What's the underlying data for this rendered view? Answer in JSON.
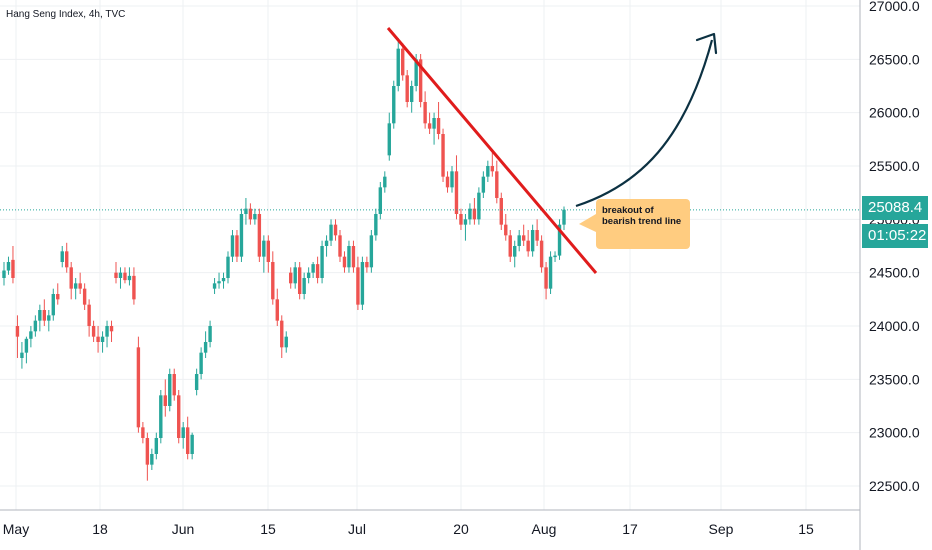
{
  "title": "Hang Seng Index, 4h, TVC",
  "colors": {
    "up": "#26a69a",
    "down": "#ef5350",
    "trend": "#e01c1c",
    "arrow": "#0c3142",
    "note_bg": "#ffcc80",
    "tag": "#26a69a"
  },
  "price_label": "25088.4",
  "countdown": "01:05:22",
  "annotation": "breakout of bearish trend line",
  "chart_data": {
    "type": "candlestick",
    "title": "Hang Seng Index, 4h, TVC",
    "y_ticks": [
      "22500.0",
      "23000.0",
      "23500.0",
      "24000.0",
      "24500.0",
      "25000.0",
      "25500.0",
      "26000.0",
      "26500.0",
      "27000.0"
    ],
    "x_ticks": [
      "May",
      "18",
      "Jun",
      "15",
      "Jul",
      "20",
      "Aug",
      "17",
      "Sep",
      "15"
    ],
    "ylim": [
      22250,
      27050
    ],
    "last_price": 25088.4,
    "candles": [
      [
        24450,
        24600,
        24380,
        24520
      ],
      [
        24520,
        24650,
        24480,
        24600
      ],
      [
        24620,
        24750,
        24400,
        24450
      ],
      [
        24000,
        24100,
        23700,
        23900
      ],
      [
        23700,
        23850,
        23600,
        23750
      ],
      [
        23750,
        23900,
        23650,
        23880
      ],
      [
        23880,
        24000,
        23800,
        23950
      ],
      [
        23950,
        24100,
        23900,
        24050
      ],
      [
        24050,
        24200,
        23950,
        24150
      ],
      [
        24150,
        24250,
        24000,
        24050
      ],
      [
        24050,
        24150,
        23950,
        24100
      ],
      [
        24100,
        24350,
        24050,
        24300
      ],
      [
        24300,
        24400,
        24200,
        24250
      ],
      [
        24600,
        24750,
        24550,
        24700
      ],
      [
        24700,
        24780,
        24500,
        24550
      ],
      [
        24550,
        24600,
        24250,
        24350
      ],
      [
        24350,
        24450,
        24250,
        24400
      ],
      [
        24400,
        24500,
        24300,
        24350
      ],
      [
        24350,
        24400,
        24150,
        24200
      ],
      [
        24200,
        24250,
        23900,
        24000
      ],
      [
        24000,
        24050,
        23850,
        23900
      ],
      [
        23900,
        24000,
        23750,
        23850
      ],
      [
        23850,
        23950,
        23750,
        23900
      ],
      [
        23900,
        24050,
        23800,
        24000
      ],
      [
        24000,
        24050,
        23850,
        23950
      ],
      [
        24500,
        24600,
        24400,
        24450
      ],
      [
        24450,
        24550,
        24350,
        24500
      ],
      [
        24500,
        24550,
        24400,
        24430
      ],
      [
        24430,
        24550,
        24380,
        24470
      ],
      [
        24470,
        24550,
        24200,
        24250
      ],
      [
        23800,
        23900,
        23000,
        23050
      ],
      [
        23050,
        23100,
        22900,
        22950
      ],
      [
        22950,
        23000,
        22550,
        22700
      ],
      [
        22700,
        22850,
        22650,
        22800
      ],
      [
        22800,
        23000,
        22750,
        22950
      ],
      [
        22950,
        23400,
        22900,
        23350
      ],
      [
        23350,
        23500,
        23150,
        23250
      ],
      [
        23250,
        23600,
        23200,
        23550
      ],
      [
        23550,
        23600,
        23300,
        23350
      ],
      [
        23350,
        23400,
        22900,
        22950
      ],
      [
        22950,
        23100,
        22850,
        23050
      ],
      [
        23050,
        23150,
        22750,
        22800
      ],
      [
        22800,
        23000,
        22750,
        22980
      ],
      [
        23400,
        23600,
        23350,
        23550
      ],
      [
        23550,
        23800,
        23500,
        23750
      ],
      [
        23750,
        23950,
        23700,
        23850
      ],
      [
        23850,
        24050,
        23800,
        24000
      ],
      [
        24350,
        24450,
        24300,
        24400
      ],
      [
        24400,
        24500,
        24350,
        24420
      ],
      [
        24420,
        24500,
        24350,
        24450
      ],
      [
        24450,
        24700,
        24400,
        24650
      ],
      [
        24650,
        24900,
        24600,
        24850
      ],
      [
        24850,
        24900,
        24600,
        24650
      ],
      [
        24650,
        25100,
        24600,
        25050
      ],
      [
        25050,
        25200,
        24950,
        25100
      ],
      [
        25100,
        25150,
        24950,
        25000
      ],
      [
        25000,
        25100,
        24950,
        25050
      ],
      [
        25050,
        25100,
        24600,
        24650
      ],
      [
        24650,
        24850,
        24500,
        24800
      ],
      [
        24800,
        24850,
        24500,
        24600
      ],
      [
        24600,
        24700,
        24200,
        24250
      ],
      [
        24250,
        24350,
        24000,
        24050
      ],
      [
        24050,
        24100,
        23700,
        23800
      ],
      [
        23800,
        23950,
        23750,
        23900
      ],
      [
        24500,
        24550,
        24350,
        24400
      ],
      [
        24400,
        24600,
        24350,
        24550
      ],
      [
        24550,
        24600,
        24250,
        24300
      ],
      [
        24300,
        24500,
        24250,
        24450
      ],
      [
        24450,
        24550,
        24400,
        24500
      ],
      [
        24500,
        24600,
        24450,
        24580
      ],
      [
        24580,
        24650,
        24400,
        24450
      ],
      [
        24450,
        24800,
        24400,
        24750
      ],
      [
        24750,
        24850,
        24650,
        24800
      ],
      [
        24800,
        25000,
        24750,
        24950
      ],
      [
        24950,
        25000,
        24800,
        24850
      ],
      [
        24850,
        24900,
        24600,
        24650
      ],
      [
        24650,
        24700,
        24500,
        24550
      ],
      [
        24550,
        24800,
        24500,
        24750
      ],
      [
        24750,
        24800,
        24500,
        24550
      ],
      [
        24550,
        24650,
        24150,
        24200
      ],
      [
        24200,
        24650,
        24150,
        24600
      ],
      [
        24600,
        24650,
        24500,
        24550
      ],
      [
        24550,
        24900,
        24500,
        24850
      ],
      [
        24850,
        25100,
        24800,
        25050
      ],
      [
        25050,
        25350,
        25000,
        25300
      ],
      [
        25300,
        25450,
        25250,
        25400
      ],
      [
        25600,
        26000,
        25550,
        25900
      ],
      [
        25900,
        26300,
        25850,
        26250
      ],
      [
        26250,
        26700,
        26200,
        26600
      ],
      [
        26600,
        26650,
        26300,
        26350
      ],
      [
        26350,
        26400,
        26050,
        26100
      ],
      [
        26100,
        26300,
        26000,
        26250
      ],
      [
        26250,
        26550,
        26200,
        26500
      ],
      [
        26500,
        26550,
        26050,
        26100
      ],
      [
        26100,
        26200,
        25850,
        25900
      ],
      [
        25900,
        26000,
        25800,
        25850
      ],
      [
        25850,
        26000,
        25700,
        25950
      ],
      [
        25950,
        26100,
        25750,
        25800
      ],
      [
        25800,
        25850,
        25350,
        25400
      ],
      [
        25400,
        25450,
        25250,
        25300
      ],
      [
        25300,
        25500,
        25250,
        25450
      ],
      [
        25450,
        25600,
        25000,
        25050
      ],
      [
        25050,
        25100,
        24900,
        24950
      ],
      [
        24950,
        25050,
        24800,
        25000
      ],
      [
        25000,
        25150,
        24950,
        25100
      ],
      [
        25100,
        25200,
        24950,
        25000
      ],
      [
        25000,
        25300,
        24950,
        25250
      ],
      [
        25250,
        25450,
        25200,
        25400
      ],
      [
        25400,
        25550,
        25350,
        25500
      ],
      [
        25500,
        25650,
        25400,
        25450
      ],
      [
        25450,
        25550,
        25150,
        25200
      ],
      [
        25200,
        25250,
        24900,
        24950
      ],
      [
        24950,
        25050,
        24800,
        24850
      ],
      [
        24850,
        24900,
        24600,
        24650
      ],
      [
        24650,
        24800,
        24550,
        24750
      ],
      [
        24750,
        24900,
        24700,
        24850
      ],
      [
        24850,
        24950,
        24750,
        24800
      ],
      [
        24800,
        24900,
        24650,
        24700
      ],
      [
        24700,
        24950,
        24650,
        24900
      ],
      [
        24900,
        25000,
        24750,
        24800
      ],
      [
        24800,
        24850,
        24500,
        24550
      ],
      [
        24550,
        24600,
        24250,
        24350
      ],
      [
        24350,
        24700,
        24300,
        24650
      ],
      [
        24650,
        24700,
        24600,
        24660
      ],
      [
        24660,
        25000,
        24620,
        24950
      ],
      [
        24950,
        25120,
        24900,
        25090
      ]
    ]
  }
}
